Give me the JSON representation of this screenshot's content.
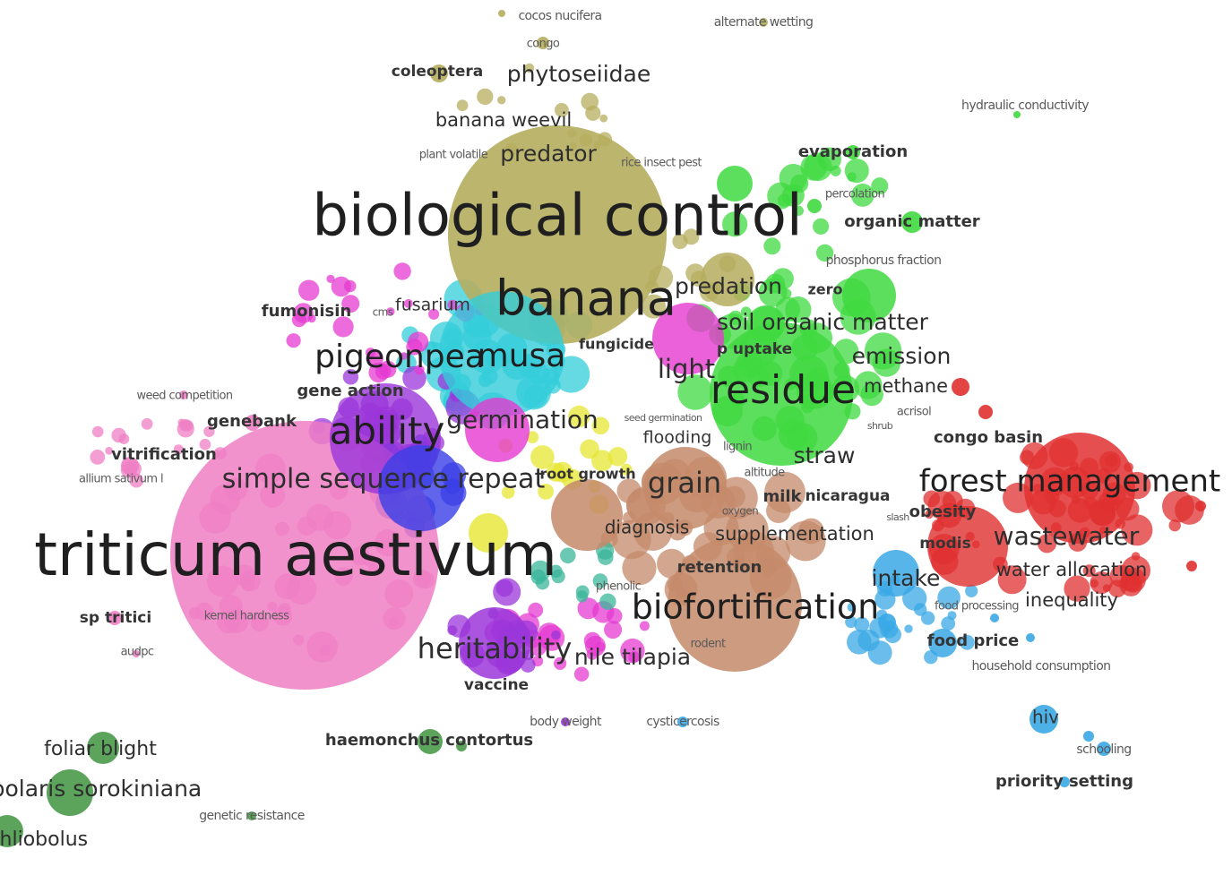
{
  "clusters": {
    "olive": "#b5ad5e",
    "pink": "#ef7fc4",
    "cyan": "#33cdd9",
    "purple": "#9b36d9",
    "blue": "#3a3fe6",
    "green": "#3fd93f",
    "red": "#e03030",
    "brown": "#c48a6a",
    "yellow": "#e6e632",
    "sky": "#3aa8e6",
    "dgreen": "#4a9a4a",
    "magenta": "#e53ad1",
    "teal": "#3ab59a"
  },
  "labels": [
    {
      "text": "cocos nucifera",
      "cluster": "olive",
      "weight": 0
    },
    {
      "text": "alternate wetting",
      "cluster": "olive",
      "weight": 0
    },
    {
      "text": "congo",
      "cluster": "olive",
      "weight": 0
    },
    {
      "text": "coleoptera",
      "cluster": "olive",
      "weight": 1
    },
    {
      "text": "phytoseiidae",
      "cluster": "olive",
      "weight": 3
    },
    {
      "text": "hydraulic conductivity",
      "cluster": "green",
      "weight": 0
    },
    {
      "text": "banana weevil",
      "cluster": "olive",
      "weight": 2
    },
    {
      "text": "plant volatile",
      "cluster": "olive",
      "weight": 0
    },
    {
      "text": "predator",
      "cluster": "olive",
      "weight": 3
    },
    {
      "text": "rice insect pest",
      "cluster": "olive",
      "weight": 0
    },
    {
      "text": "evaporation",
      "cluster": "green",
      "weight": 1
    },
    {
      "text": "percolation",
      "cluster": "green",
      "weight": 0
    },
    {
      "text": "biological control",
      "cluster": "olive",
      "weight": 6
    },
    {
      "text": "organic matter",
      "cluster": "green",
      "weight": 1
    },
    {
      "text": "phosphorus fraction",
      "cluster": "green",
      "weight": 0
    },
    {
      "text": "banana",
      "cluster": "olive",
      "weight": 5
    },
    {
      "text": "predation",
      "cluster": "olive",
      "weight": 2
    },
    {
      "text": "zero",
      "cluster": "green",
      "weight": 1
    },
    {
      "text": "fumonisin",
      "cluster": "magenta",
      "weight": 1
    },
    {
      "text": "cms",
      "cluster": "cyan",
      "weight": 0
    },
    {
      "text": "fusarium",
      "cluster": "cyan",
      "weight": 1
    },
    {
      "text": "soil organic matter",
      "cluster": "green",
      "weight": 3
    },
    {
      "text": "fungicide",
      "cluster": "cyan",
      "weight": 1
    },
    {
      "text": "p uptake",
      "cluster": "green",
      "weight": 1
    },
    {
      "text": "pigeonpea",
      "cluster": "purple",
      "weight": 4
    },
    {
      "text": "musa",
      "cluster": "cyan",
      "weight": 4
    },
    {
      "text": "emission",
      "cluster": "green",
      "weight": 3
    },
    {
      "text": "light",
      "cluster": "magenta",
      "weight": 3
    },
    {
      "text": "residue",
      "cluster": "green",
      "weight": 5
    },
    {
      "text": "methane",
      "cluster": "green",
      "weight": 2
    },
    {
      "text": "weed competition",
      "cluster": "pink",
      "weight": 0
    },
    {
      "text": "gene action",
      "cluster": "purple",
      "weight": 1
    },
    {
      "text": "acrisol",
      "cluster": "green",
      "weight": 0
    },
    {
      "text": "genebank",
      "cluster": "pink",
      "weight": 1
    },
    {
      "text": "ability",
      "cluster": "purple",
      "weight": 5
    },
    {
      "text": "germination",
      "cluster": "cyan",
      "weight": 3
    },
    {
      "text": "seed germination",
      "cluster": "cyan",
      "weight": 0
    },
    {
      "text": "shrub",
      "cluster": "yellow",
      "weight": 0
    },
    {
      "text": "flooding",
      "cluster": "yellow",
      "weight": 1
    },
    {
      "text": "congo basin",
      "cluster": "red",
      "weight": 1
    },
    {
      "text": "vitrification",
      "cluster": "pink",
      "weight": 1
    },
    {
      "text": "lignin",
      "cluster": "green",
      "weight": 0
    },
    {
      "text": "straw",
      "cluster": "green",
      "weight": 2
    },
    {
      "text": "allium sativum l",
      "cluster": "pink",
      "weight": 0
    },
    {
      "text": "simple sequence repeat",
      "cluster": "pink",
      "weight": 3
    },
    {
      "text": "root growth",
      "cluster": "yellow",
      "weight": 1
    },
    {
      "text": "grain",
      "cluster": "brown",
      "weight": 3
    },
    {
      "text": "altitude",
      "cluster": "brown",
      "weight": 0
    },
    {
      "text": "forest management",
      "cluster": "red",
      "weight": 4
    },
    {
      "text": "milk",
      "cluster": "brown",
      "weight": 1
    },
    {
      "text": "nicaragua",
      "cluster": "red",
      "weight": 1
    },
    {
      "text": "oxygen",
      "cluster": "brown",
      "weight": 0
    },
    {
      "text": "slash",
      "cluster": "red",
      "weight": 0
    },
    {
      "text": "obesity",
      "cluster": "red",
      "weight": 1
    },
    {
      "text": "diagnosis",
      "cluster": "brown",
      "weight": 2
    },
    {
      "text": "supplementation",
      "cluster": "brown",
      "weight": 2
    },
    {
      "text": "triticum aestivum",
      "cluster": "pink",
      "weight": 6
    },
    {
      "text": "modis",
      "cluster": "red",
      "weight": 1
    },
    {
      "text": "wastewater",
      "cluster": "red",
      "weight": 3
    },
    {
      "text": "retention",
      "cluster": "brown",
      "weight": 1
    },
    {
      "text": "water allocation",
      "cluster": "red",
      "weight": 2
    },
    {
      "text": "intake",
      "cluster": "sky",
      "weight": 3
    },
    {
      "text": "phenolic",
      "cluster": "brown",
      "weight": 0
    },
    {
      "text": "biofortification",
      "cluster": "brown",
      "weight": 4
    },
    {
      "text": "food processing",
      "cluster": "sky",
      "weight": 0
    },
    {
      "text": "inequality",
      "cluster": "red",
      "weight": 2
    },
    {
      "text": "sp tritici",
      "cluster": "pink",
      "weight": 1
    },
    {
      "text": "kernel hardness",
      "cluster": "pink",
      "weight": 0
    },
    {
      "text": "food price",
      "cluster": "sky",
      "weight": 1
    },
    {
      "text": "audpc",
      "cluster": "pink",
      "weight": 0
    },
    {
      "text": "rodent",
      "cluster": "brown",
      "weight": 0
    },
    {
      "text": "heritability",
      "cluster": "purple",
      "weight": 3
    },
    {
      "text": "nile tilapia",
      "cluster": "magenta",
      "weight": 2
    },
    {
      "text": "household consumption",
      "cluster": "sky",
      "weight": 0
    },
    {
      "text": "vaccine",
      "cluster": "purple",
      "weight": 1
    },
    {
      "text": "hiv",
      "cluster": "sky",
      "weight": 1
    },
    {
      "text": "body weight",
      "cluster": "purple",
      "weight": 0
    },
    {
      "text": "cysticercosis",
      "cluster": "sky",
      "weight": 0
    },
    {
      "text": "foliar blight",
      "cluster": "dgreen",
      "weight": 2
    },
    {
      "text": "haemonchus contortus",
      "cluster": "dgreen",
      "weight": 1
    },
    {
      "text": "schooling",
      "cluster": "sky",
      "weight": 0
    },
    {
      "text": "bipolaris sorokiniana",
      "cluster": "dgreen",
      "weight": 2
    },
    {
      "text": "priority setting",
      "cluster": "sky",
      "weight": 1
    },
    {
      "text": "genetic resistance",
      "cluster": "dgreen",
      "weight": 0
    },
    {
      "text": "cochliobolus",
      "cluster": "dgreen",
      "weight": 2
    }
  ]
}
